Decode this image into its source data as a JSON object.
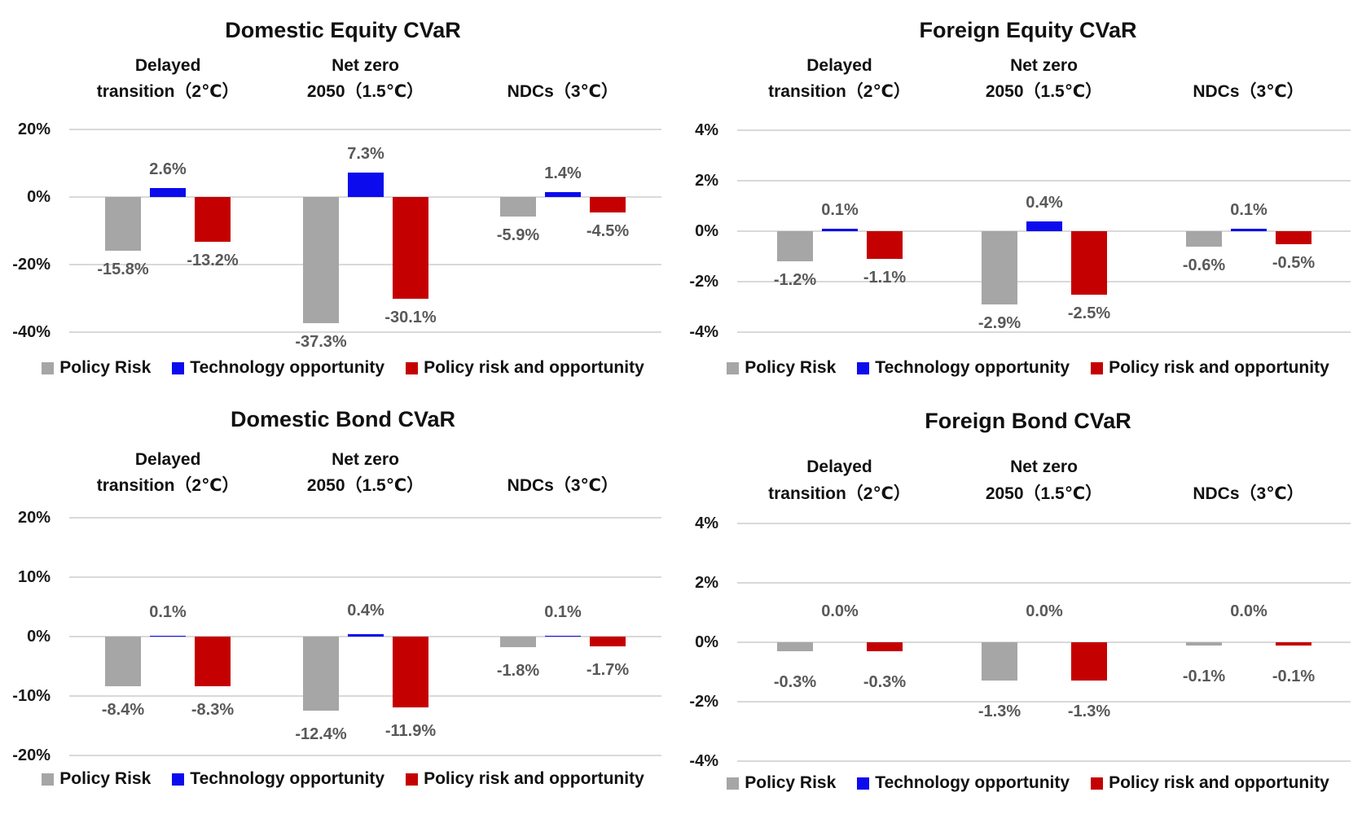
{
  "legend": {
    "items": [
      {
        "label": "Policy Risk",
        "color": "#A6A6A6"
      },
      {
        "label": "Technology opportunity",
        "color": "#0B0BEE"
      },
      {
        "label": "Policy risk and opportunity",
        "color": "#C40000"
      }
    ]
  },
  "chart_data": [
    {
      "type": "bar",
      "title": "Domestic Equity  CVaR",
      "categories": [
        "Delayed transition（2℃）",
        "Net zero 2050（1.5℃）",
        "NDCs（3℃）"
      ],
      "category_lines": [
        [
          "Delayed",
          "transition（2℃）"
        ],
        [
          "Net zero",
          "2050（1.5℃）"
        ],
        [
          "",
          "NDCs（3℃）"
        ]
      ],
      "ylim": [
        -40,
        20
      ],
      "grid": true,
      "legend_position": "bottom",
      "yticks": [
        {
          "label": "20%",
          "value": 20
        },
        {
          "label": "0%",
          "value": 0
        },
        {
          "label": "-20%",
          "value": -20
        },
        {
          "label": "-40%",
          "value": -40
        }
      ],
      "series": [
        {
          "name": "Policy Risk",
          "values": [
            -15.8,
            -37.3,
            -5.9
          ],
          "labels": [
            "-15.8%",
            "-37.3%",
            "-5.9%"
          ]
        },
        {
          "name": "Technology opportunity",
          "values": [
            2.6,
            7.3,
            1.4
          ],
          "labels": [
            "2.6%",
            "7.3%",
            "1.4%"
          ]
        },
        {
          "name": "Policy risk and opportunity",
          "values": [
            -13.2,
            -30.1,
            -4.5
          ],
          "labels": [
            "-13.2%",
            "-30.1%",
            "-4.5%"
          ]
        }
      ]
    },
    {
      "type": "bar",
      "title": "Foreign Equity CVaR",
      "categories": [
        "Delayed transition（2℃）",
        "Net zero 2050（1.5℃）",
        "NDCs（3℃）"
      ],
      "category_lines": [
        [
          "Delayed",
          "transition（2℃）"
        ],
        [
          "Net zero",
          "2050（1.5℃）"
        ],
        [
          "",
          "NDCs（3℃）"
        ]
      ],
      "ylim": [
        -4,
        4
      ],
      "grid": true,
      "legend_position": "bottom",
      "yticks": [
        {
          "label": "4%",
          "value": 4
        },
        {
          "label": "2%",
          "value": 2
        },
        {
          "label": "0%",
          "value": 0
        },
        {
          "label": "-2%",
          "value": -2
        },
        {
          "label": "-4%",
          "value": -4
        }
      ],
      "series": [
        {
          "name": "Policy Risk",
          "values": [
            -1.2,
            -2.9,
            -0.6
          ],
          "labels": [
            "-1.2%",
            "-2.9%",
            "-0.6%"
          ]
        },
        {
          "name": "Technology opportunity",
          "values": [
            0.1,
            0.4,
            0.1
          ],
          "labels": [
            "0.1%",
            "0.4%",
            "0.1%"
          ]
        },
        {
          "name": "Policy risk and opportunity",
          "values": [
            -1.1,
            -2.5,
            -0.5
          ],
          "labels": [
            "-1.1%",
            "-2.5%",
            "-0.5%"
          ]
        }
      ]
    },
    {
      "type": "bar",
      "title": "Domestic Bond CVaR",
      "categories": [
        "Delayed transition（2℃）",
        "Net zero 2050（1.5℃）",
        "NDCs（3℃）"
      ],
      "category_lines": [
        [
          "Delayed",
          "transition（2℃）"
        ],
        [
          "Net zero",
          "2050（1.5℃）"
        ],
        [
          "",
          "NDCs（3℃）"
        ]
      ],
      "ylim": [
        -20,
        20
      ],
      "grid": true,
      "legend_position": "bottom",
      "yticks": [
        {
          "label": "20%",
          "value": 20
        },
        {
          "label": "10%",
          "value": 10
        },
        {
          "label": "0%",
          "value": 0
        },
        {
          "label": "-10%",
          "value": -10
        },
        {
          "label": "-20%",
          "value": -20
        }
      ],
      "series": [
        {
          "name": "Policy Risk",
          "values": [
            -8.4,
            -12.4,
            -1.8
          ],
          "labels": [
            "-8.4%",
            "-12.4%",
            "-1.8%"
          ]
        },
        {
          "name": "Technology opportunity",
          "values": [
            0.1,
            0.4,
            0.1
          ],
          "labels": [
            "0.1%",
            "0.4%",
            "0.1%"
          ]
        },
        {
          "name": "Policy risk and opportunity",
          "values": [
            -8.3,
            -11.9,
            -1.7
          ],
          "labels": [
            "-8.3%",
            "-11.9%",
            "-1.7%"
          ]
        }
      ]
    },
    {
      "type": "bar",
      "title": "Foreign Bond CVaR",
      "categories": [
        "Delayed transition（2℃）",
        "Net zero 2050（1.5℃）",
        "NDCs（3℃）"
      ],
      "category_lines": [
        [
          "Delayed",
          "transition（2℃）"
        ],
        [
          "Net zero",
          "2050（1.5℃）"
        ],
        [
          "",
          "NDCs（3℃）"
        ]
      ],
      "ylim": [
        -4,
        4
      ],
      "grid": true,
      "legend_position": "bottom",
      "yticks": [
        {
          "label": "4%",
          "value": 4
        },
        {
          "label": "2%",
          "value": 2
        },
        {
          "label": "0%",
          "value": 0
        },
        {
          "label": "-2%",
          "value": -2
        },
        {
          "label": "-4%",
          "value": -4
        }
      ],
      "series": [
        {
          "name": "Policy Risk",
          "values": [
            -0.3,
            -1.3,
            -0.1
          ],
          "labels": [
            "-0.3%",
            "-1.3%",
            "-0.1%"
          ]
        },
        {
          "name": "Technology opportunity",
          "values": [
            0.0,
            0.0,
            0.0
          ],
          "labels": [
            "0.0%",
            "0.0%",
            "0.0%"
          ]
        },
        {
          "name": "Policy risk and opportunity",
          "values": [
            -0.3,
            -1.3,
            -0.1
          ],
          "labels": [
            "-0.3%",
            "-1.3%",
            "-0.1%"
          ]
        }
      ]
    }
  ]
}
